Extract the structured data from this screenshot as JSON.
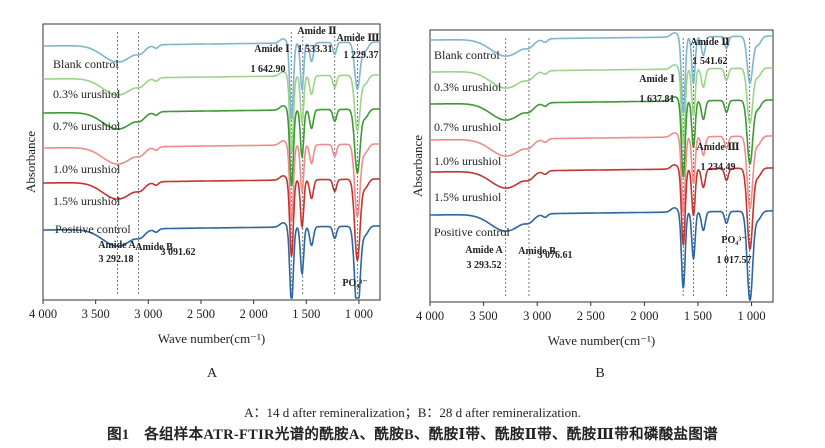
{
  "chart_data": [
    {
      "type": "line",
      "panel_label": "A",
      "xlabel": "Wave number(cm⁻¹)",
      "ylabel": "Absorbance",
      "x_ticks": [
        4000,
        3500,
        3000,
        2500,
        2000,
        1500,
        1000
      ],
      "x_tick_labels": [
        "4 000",
        "3 500",
        "3 000",
        "2 500",
        "2 000",
        "1 500",
        "1 000"
      ],
      "xlim": [
        4000,
        800
      ],
      "x_reversed": true,
      "y_ticks": false,
      "grid": false,
      "legend": "inline-left",
      "series": [
        {
          "name": "Blank control",
          "color": "#7fb6cf"
        },
        {
          "name": "0.3% urushiol",
          "color": "#9bd48a"
        },
        {
          "name": "0.7% urushiol",
          "color": "#3c9a32"
        },
        {
          "name": "1.0% urushiol",
          "color": "#f08c8c"
        },
        {
          "name": "1.5% urushiol",
          "color": "#c23530"
        },
        {
          "name": "Positive control",
          "color": "#2d66a1"
        }
      ],
      "reference_lines": [
        3292.18,
        3091.62,
        1642.9,
        1533.31,
        1229.37,
        1015
      ],
      "annotations": [
        {
          "title": "Amide A",
          "value": "3 292.18"
        },
        {
          "title": "Amide B",
          "value": "3 091.62"
        },
        {
          "title": "Amide Ⅰ",
          "value": "1 642.90"
        },
        {
          "title": "Amide Ⅱ",
          "value": "1 533.31"
        },
        {
          "title": "Amide Ⅲ",
          "value": "1 229.37"
        },
        {
          "title": "PO₄³⁻",
          "value": ""
        }
      ]
    },
    {
      "type": "line",
      "panel_label": "B",
      "xlabel": "Wave number(cm⁻¹)",
      "ylabel": "Absorbance",
      "x_ticks": [
        4000,
        3500,
        3000,
        2500,
        2000,
        1500,
        1000
      ],
      "x_tick_labels": [
        "4 000",
        "3 500",
        "3 000",
        "2 500",
        "2 000",
        "1 500",
        "1 000"
      ],
      "xlim": [
        4000,
        800
      ],
      "x_reversed": true,
      "y_ticks": false,
      "grid": false,
      "legend": "inline-left",
      "series": [
        {
          "name": "Blank control",
          "color": "#7fb6cf"
        },
        {
          "name": "0.3% urushiol",
          "color": "#9bd48a"
        },
        {
          "name": "0.7% urushiol",
          "color": "#3c9a32"
        },
        {
          "name": "1.0% urushiol",
          "color": "#f08c8c"
        },
        {
          "name": "1.5% urushiol",
          "color": "#c23530"
        },
        {
          "name": "Positive control",
          "color": "#2d66a1"
        }
      ],
      "reference_lines": [
        3293.52,
        3076.61,
        1637.81,
        1541.62,
        1234.49,
        1017.57
      ],
      "annotations": [
        {
          "title": "Amide A",
          "value": "3 293.52"
        },
        {
          "title": "Amide B",
          "value": "3 076.61"
        },
        {
          "title": "Amide Ⅰ",
          "value": "1 637.81"
        },
        {
          "title": "Amide Ⅱ",
          "value": "1 541.62"
        },
        {
          "title": "Amide Ⅲ",
          "value": "1 234.49"
        },
        {
          "title": "PO₄³⁻",
          "value": "1 017.57"
        }
      ]
    }
  ],
  "captions": {
    "sub": "A：14 d after remineralization；B：28 d after remineralization.",
    "main": "图1　各组样本ATR-FTIR光谱的酰胺A、酰胺B、酰胺Ⅰ带、酰胺Ⅱ带、酰胺Ⅲ带和磷酸盐图谱"
  }
}
